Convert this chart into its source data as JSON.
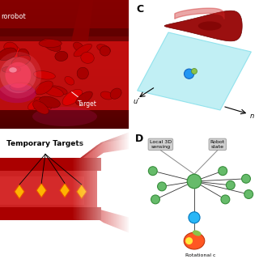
{
  "bg_color": "#ffffff",
  "panel_A": {
    "label": "",
    "text_microrobot": "rorobot",
    "text_target": "Target",
    "bg_color": "#8B0000"
  },
  "panel_B": {
    "label": "",
    "text_temp_targets": "Temporary Targets",
    "bg_color": "#c0392b"
  },
  "panel_C": {
    "label": "C",
    "rbc_color": "#8B0000",
    "plane_color": "#b2ebf2",
    "robot_color_outer": "#2196F3",
    "robot_color_inner": "#8BC34A",
    "axis_label_u": "u’",
    "axis_label_n": "n"
  },
  "panel_D": {
    "label": "D",
    "box1_text": "Local 3D\nsensing",
    "box2_text": "Robot\nstate",
    "bottom_text": "Rotational c",
    "node_color_green": "#66BB6A",
    "node_color_green_edge": "#388E3C",
    "node_color_blue": "#29B6F6",
    "node_color_blue_edge": "#0277BD",
    "node_color_robot": "#FF5722",
    "edge_color": "#333333",
    "bg_box_color": "#d0d0d0"
  }
}
